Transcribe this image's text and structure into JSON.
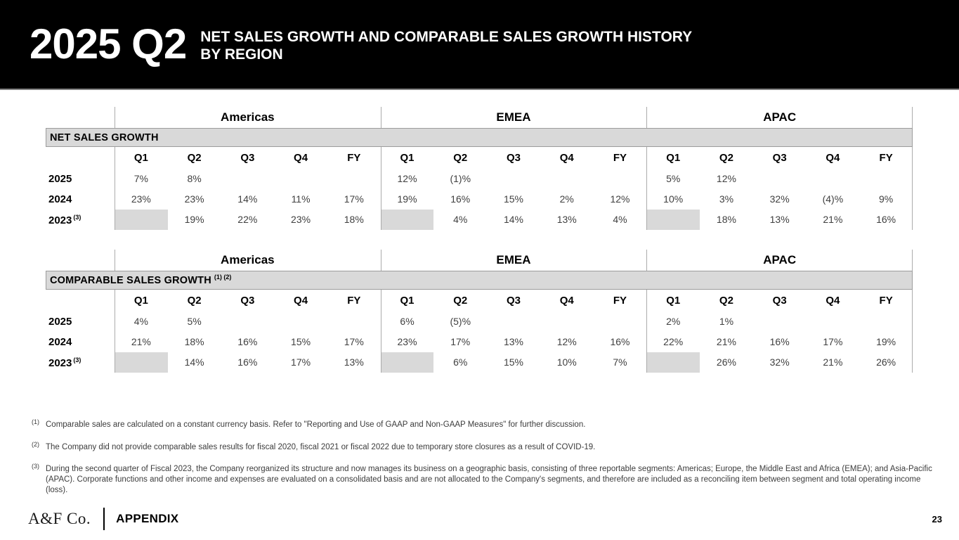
{
  "header": {
    "badge": "2025 Q2",
    "title_line1": "NET SALES GROWTH AND COMPARABLE SALES GROWTH HISTORY",
    "title_line2": "BY REGION"
  },
  "regions": [
    "Americas",
    "EMEA",
    "APAC"
  ],
  "quarter_headers": [
    "Q1",
    "Q2",
    "Q3",
    "Q4",
    "FY"
  ],
  "tables": [
    {
      "title": "NET SALES GROWTH",
      "title_sup": "",
      "rows": [
        {
          "label": "2025",
          "label_sup": "",
          "shaded_q1": false,
          "cells": [
            [
              "7%",
              "8%",
              "",
              "",
              ""
            ],
            [
              "12%",
              "(1)%",
              "",
              "",
              ""
            ],
            [
              "5%",
              "12%",
              "",
              "",
              ""
            ]
          ]
        },
        {
          "label": "2024",
          "label_sup": "",
          "shaded_q1": false,
          "cells": [
            [
              "23%",
              "23%",
              "14%",
              "11%",
              "17%"
            ],
            [
              "19%",
              "16%",
              "15%",
              "2%",
              "12%"
            ],
            [
              "10%",
              "3%",
              "32%",
              "(4)%",
              "9%"
            ]
          ]
        },
        {
          "label": "2023",
          "label_sup": "(3)",
          "shaded_q1": true,
          "cells": [
            [
              "",
              "19%",
              "22%",
              "23%",
              "18%"
            ],
            [
              "",
              "4%",
              "14%",
              "13%",
              "4%"
            ],
            [
              "",
              "18%",
              "13%",
              "21%",
              "16%"
            ]
          ]
        }
      ]
    },
    {
      "title": "COMPARABLE SALES GROWTH",
      "title_sup": "(1) (2)",
      "rows": [
        {
          "label": "2025",
          "label_sup": "",
          "shaded_q1": false,
          "cells": [
            [
              "4%",
              "5%",
              "",
              "",
              ""
            ],
            [
              "6%",
              "(5)%",
              "",
              "",
              ""
            ],
            [
              "2%",
              "1%",
              "",
              "",
              ""
            ]
          ]
        },
        {
          "label": "2024",
          "label_sup": "",
          "shaded_q1": false,
          "cells": [
            [
              "21%",
              "18%",
              "16%",
              "15%",
              "17%"
            ],
            [
              "23%",
              "17%",
              "13%",
              "12%",
              "16%"
            ],
            [
              "22%",
              "21%",
              "16%",
              "17%",
              "19%"
            ]
          ]
        },
        {
          "label": "2023",
          "label_sup": "(3)",
          "shaded_q1": true,
          "cells": [
            [
              "",
              "14%",
              "16%",
              "17%",
              "13%"
            ],
            [
              "",
              "6%",
              "15%",
              "10%",
              "7%"
            ],
            [
              "",
              "26%",
              "32%",
              "21%",
              "26%"
            ]
          ]
        }
      ]
    }
  ],
  "footnotes": [
    {
      "marker": "(1)",
      "text": "Comparable sales are calculated on a constant currency basis. Refer to \"Reporting and Use of GAAP and Non-GAAP Measures\" for further discussion."
    },
    {
      "marker": "(2)",
      "text": "The Company did not provide comparable sales results for fiscal 2020, fiscal 2021 or fiscal 2022 due to temporary store closures as a result of COVID-19."
    },
    {
      "marker": "(3)",
      "text": "During the second quarter of Fiscal 2023, the Company reorganized its structure and now manages its business on a geographic basis, consisting of three reportable segments: Americas; Europe, the Middle East and Africa (EMEA); and Asia-Pacific (APAC). Corporate functions and other income and expenses are evaluated on a consolidated basis and are not allocated to the Company's segments, and therefore are included as a reconciling item between segment and total operating income (loss)."
    }
  ],
  "footer": {
    "logo": "A&F Co.",
    "section": "APPENDIX",
    "page": "23"
  },
  "colors": {
    "header_black": "#000000",
    "banner_gray": "#d9d9d9",
    "line_gray": "#ababab",
    "text_gray": "#404040"
  }
}
